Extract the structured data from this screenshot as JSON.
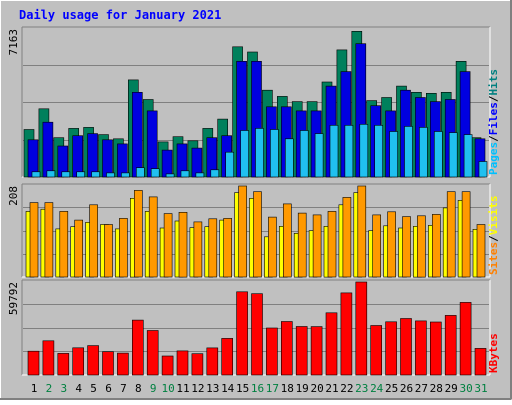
{
  "chart_data": [
    {
      "type": "bar",
      "title": "Daily usage for January 2021",
      "ymax_label": "7163",
      "ylim": [
        0,
        7163
      ],
      "grid": true,
      "categories": [
        "1",
        "2",
        "3",
        "4",
        "5",
        "6",
        "7",
        "8",
        "9",
        "10",
        "11",
        "12",
        "13",
        "14",
        "15",
        "16",
        "17",
        "18",
        "19",
        "20",
        "21",
        "22",
        "23",
        "24",
        "25",
        "26",
        "27",
        "28",
        "29",
        "30",
        "31"
      ],
      "weekend_days": [
        "2",
        "3",
        "9",
        "10",
        "16",
        "17",
        "23",
        "24",
        "30",
        "31"
      ],
      "legend": [
        {
          "name": "Pages",
          "color": "#00c0ff"
        },
        {
          "name": "/",
          "color": "#000000"
        },
        {
          "name": "Files",
          "color": "#0000ff"
        },
        {
          "name": "/",
          "color": "#000000"
        },
        {
          "name": "Hits",
          "color": "#008080"
        }
      ],
      "series": [
        {
          "name": "Hits",
          "color": "#00805c",
          "values": [
            2300,
            3300,
            1900,
            2350,
            2400,
            2050,
            1850,
            4700,
            3750,
            1700,
            1950,
            1750,
            2350,
            2800,
            6300,
            6050,
            4200,
            3900,
            3650,
            3650,
            4600,
            6150,
            7050,
            3700,
            3850,
            4400,
            4100,
            4050,
            4100,
            5600,
            1900
          ]
        },
        {
          "name": "Files",
          "color": "#0000e0",
          "values": [
            1800,
            2650,
            1500,
            2000,
            2100,
            1800,
            1600,
            4100,
            3200,
            1300,
            1600,
            1400,
            1900,
            2000,
            5600,
            5600,
            3400,
            3400,
            3200,
            3200,
            4400,
            5100,
            6450,
            3450,
            3200,
            4200,
            3850,
            3650,
            3750,
            5100,
            1850
          ]
        },
        {
          "name": "Pages",
          "color": "#20c0f0",
          "values": [
            250,
            300,
            250,
            250,
            250,
            200,
            200,
            450,
            400,
            150,
            300,
            200,
            350,
            1200,
            2250,
            2350,
            2300,
            1850,
            2250,
            2100,
            2500,
            2500,
            2550,
            2500,
            2200,
            2450,
            2400,
            2200,
            2150,
            2050,
            750
          ]
        }
      ]
    },
    {
      "type": "bar",
      "ymax_label": "208",
      "ylim": [
        0,
        208
      ],
      "grid": true,
      "legend": [
        {
          "name": "Sites",
          "color": "#ff8000"
        },
        {
          "name": "/",
          "color": "#000000"
        },
        {
          "name": "Visits",
          "color": "#ffff00"
        }
      ],
      "series": [
        {
          "name": "Visits",
          "color": "#ffff00",
          "values": [
            150,
            155,
            110,
            115,
            125,
            120,
            110,
            180,
            150,
            112,
            128,
            113,
            115,
            130,
            193,
            180,
            92,
            116,
            100,
            106,
            116,
            165,
            193,
            106,
            117,
            112,
            116,
            118,
            158,
            175,
            109
          ]
        },
        {
          "name": "Sites",
          "color": "#ff9900",
          "values": [
            170,
            170,
            150,
            130,
            165,
            120,
            134,
            198,
            183,
            145,
            148,
            126,
            133,
            134,
            208,
            195,
            137,
            167,
            146,
            142,
            150,
            182,
            208,
            142,
            149,
            138,
            140,
            143,
            195,
            195,
            120
          ]
        }
      ]
    },
    {
      "type": "bar",
      "ymax_label": "59792",
      "ylim": [
        0,
        59792
      ],
      "grid": true,
      "legend": [
        {
          "name": "KBytes",
          "color": "#ff0000"
        }
      ],
      "series": [
        {
          "name": "KBytes",
          "color": "#ff0000",
          "values": [
            15300,
            22000,
            13900,
            17500,
            18900,
            15000,
            14100,
            35300,
            28600,
            12200,
            15500,
            13700,
            17400,
            23500,
            53500,
            52300,
            30200,
            34400,
            31200,
            31100,
            40000,
            52800,
            59792,
            31800,
            34200,
            36300,
            34800,
            34100,
            38300,
            46700,
            17100
          ]
        }
      ]
    }
  ]
}
